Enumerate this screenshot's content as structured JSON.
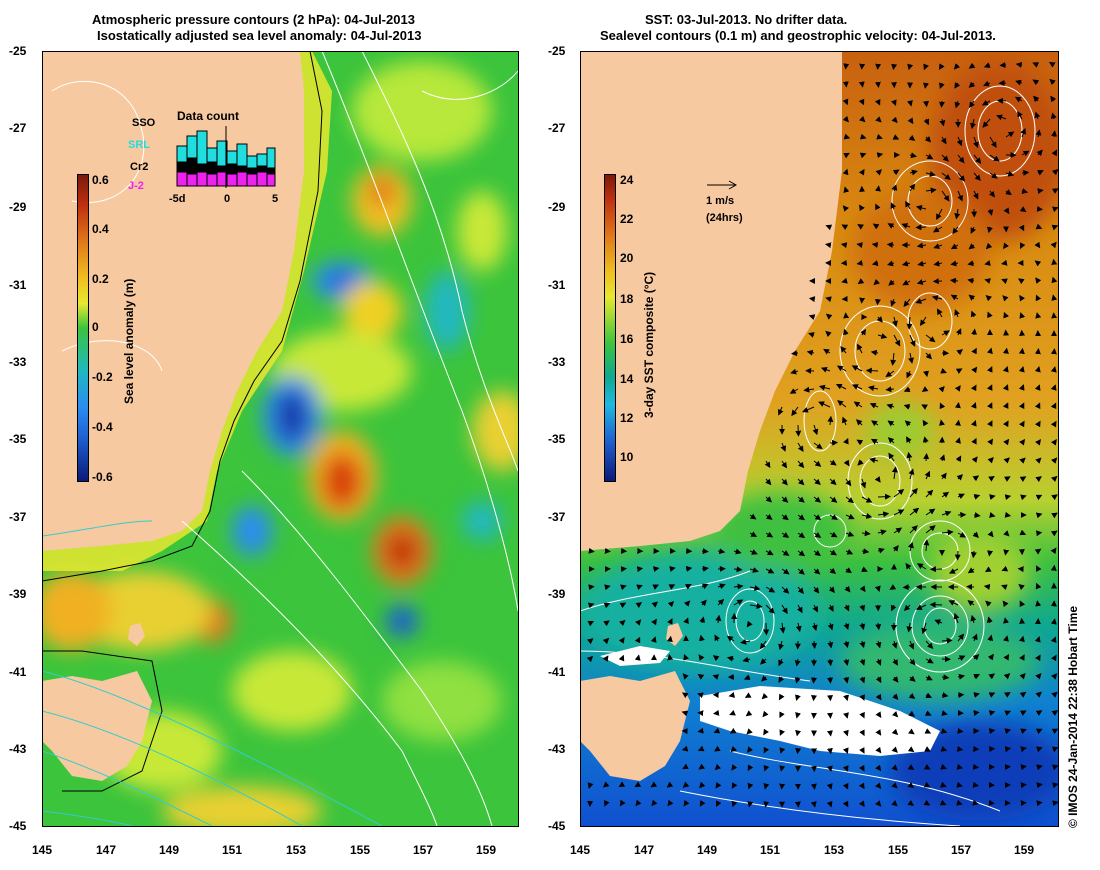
{
  "left_panel": {
    "title_line1": "Atmospheric pressure contours (2 hPa): 04-Jul-2013",
    "title_line2": "Isostatically adjusted sea level anomaly: 04-Jul-2013",
    "colorbar_label": "Sea level anomaly (m)",
    "colorbar_ticks": [
      "0.6",
      "0.4",
      "0.2",
      "0",
      "-0.2",
      "-0.4",
      "-0.6"
    ],
    "data_count_title": "Data count",
    "data_count_xticks": [
      "-5d",
      "0",
      "5"
    ],
    "legend": [
      {
        "label": "SSO",
        "color": "#000000"
      },
      {
        "label": "SRL",
        "color": "#22dddd"
      },
      {
        "label": "Cr2",
        "color": "#000000"
      },
      {
        "label": "J-2",
        "color": "#ee22ee"
      }
    ]
  },
  "right_panel": {
    "title_line1": "SST: 03-Jul-2013. No drifter data.",
    "title_line2": "Sealevel contours (0.1 m) and geostrophic velocity: 04-Jul-2013.",
    "colorbar_label": "3-day SST composite (°C)",
    "colorbar_ticks": [
      "24",
      "22",
      "20",
      "18",
      "16",
      "14",
      "12",
      "10"
    ],
    "velocity_scale_label": "1 m/s",
    "velocity_scale_sub": "(24hrs)"
  },
  "y_ticks": [
    "-25",
    "-27",
    "-29",
    "-31",
    "-33",
    "-35",
    "-37",
    "-39",
    "-41",
    "-43",
    "-45"
  ],
  "x_ticks": [
    "145",
    "147",
    "149",
    "151",
    "153",
    "155",
    "157",
    "159"
  ],
  "credit": "© IMOS 24-Jan-2014 22:38 Hobart Time",
  "colors": {
    "land": "#f7c9a0",
    "slaPositive": "#e07a1a",
    "slaNegative": "#1f5fd0",
    "sstWarm": "#e08a10",
    "sstCool": "#10a0c0",
    "contourPressure": "#ffffff",
    "contourBathy": "#33cccc"
  }
}
